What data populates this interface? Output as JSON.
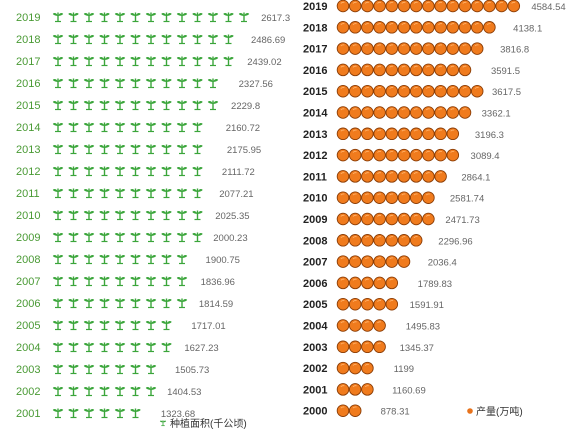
{
  "chart_data": [
    {
      "type": "bar",
      "series": [
        {
          "name": "种植面积(千公顷)",
          "values": [
            1323.68,
            1404.53,
            1505.73,
            1627.23,
            1717.01,
            1814.59,
            1836.96,
            1900.75,
            2000.23,
            2025.35,
            2077.21,
            2111.72,
            2175.95,
            2160.72,
            2229.8,
            2327.56,
            2439.02,
            2486.69,
            2617.3
          ]
        }
      ],
      "categories": [
        "2001",
        "2002",
        "2003",
        "2004",
        "2005",
        "2006",
        "2007",
        "2008",
        "2009",
        "2010",
        "2011",
        "2012",
        "2013",
        "2014",
        "2015",
        "2016",
        "2017",
        "2018",
        "2019"
      ],
      "value_labels": [
        "1323.68",
        "1404.53",
        "1505.73",
        "1627.23",
        "1717.01",
        "1814.59",
        "1836.96",
        "1900.75",
        "2000.23",
        "2025.35",
        "2077.21",
        "2111.72",
        "2175.95",
        "2160.72",
        "2229.8",
        "2327.56",
        "2439.02",
        "2486.69",
        "2617.3"
      ],
      "legend": {
        "text": "种植面积(千公顷)",
        "position": "bottom-right",
        "icon": "sprout-icon",
        "color": "#3aa53a"
      },
      "bar_style": "pictorial",
      "symbol": "sprout-icon",
      "symbol_color": "#3aa53a",
      "grid": false
    },
    {
      "type": "bar",
      "series": [
        {
          "name": "产量(万吨)",
          "values": [
            878.31,
            1160.69,
            1199,
            1345.37,
            1495.83,
            1591.91,
            1789.83,
            2036.4,
            2296.96,
            2471.73,
            2581.74,
            2864.1,
            3089.4,
            3196.3,
            3362.1,
            3617.5,
            3591.5,
            3816.8,
            4138.1,
            4584.54
          ]
        }
      ],
      "categories": [
        "2000",
        "2001",
        "2002",
        "2003",
        "2004",
        "2005",
        "2006",
        "2007",
        "2008",
        "2009",
        "2010",
        "2011",
        "2012",
        "2013",
        "2014",
        "2015",
        "2016",
        "2017",
        "2018",
        "2019"
      ],
      "value_labels": [
        "878.31",
        "1160.69",
        "1199",
        "1345.37",
        "1495.83",
        "1591.91",
        "1789.83",
        "2036.4",
        "2296.96",
        "2471.73",
        "2581.74",
        "2864.1",
        "3089.4",
        "3196.3",
        "3362.1",
        "3617.5",
        "3591.5",
        "3816.8",
        "4138.1",
        "4584.54"
      ],
      "legend": {
        "text": "产量(万吨)",
        "position": "bottom-right",
        "icon": "orange-dot-icon",
        "color": "#e8731c"
      },
      "bar_style": "pictorial",
      "symbol": "orange-icon",
      "symbol_color": "#f07b1d",
      "grid": false
    }
  ]
}
